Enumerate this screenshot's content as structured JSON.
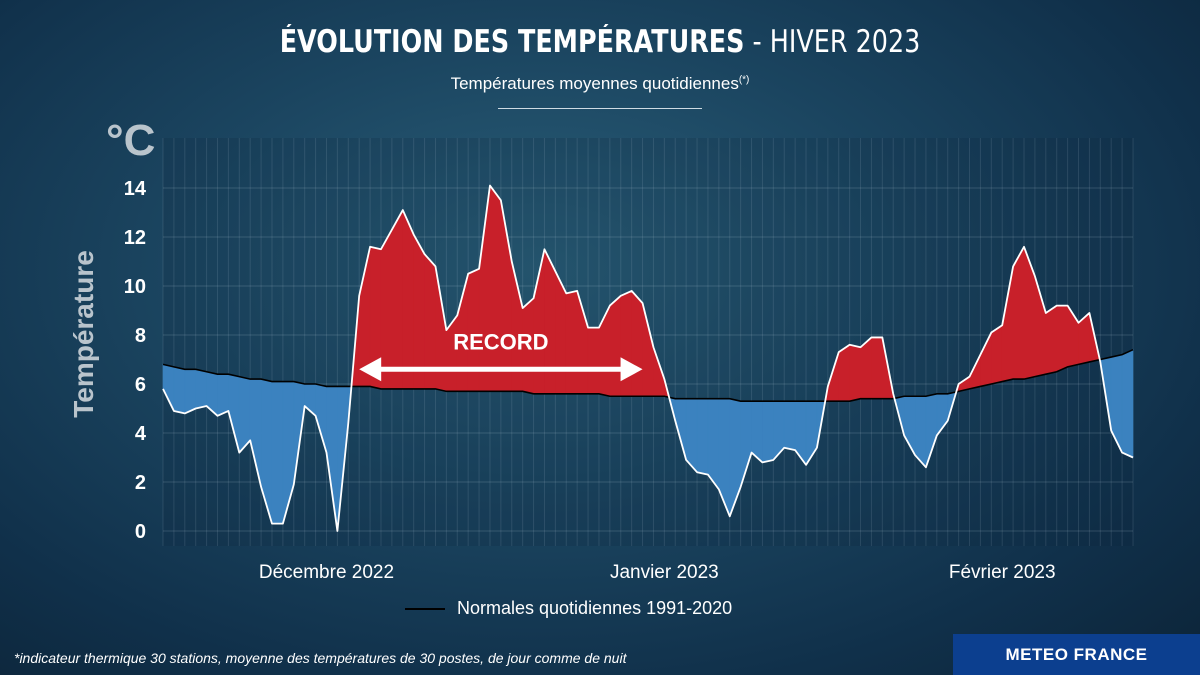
{
  "header": {
    "title_bold": "ÉVOLUTION DES TEMPÉRATURES",
    "title_light": " - HIVER 2023",
    "subtitle": "Températures moyennes quotidiennes",
    "subtitle_note": "(*)"
  },
  "footnote": "*indicateur thermique 30 stations, moyenne des températures de 30 postes, de jour comme de nuit",
  "brand": "METEO FRANCE",
  "colors": {
    "above": "#c8202a",
    "below": "#3b82bf",
    "normal_line": "#000000",
    "temp_line": "#ffffff"
  },
  "chart_data": {
    "type": "area",
    "unit": "°C",
    "ylabel": "Température",
    "ylim": [
      -0.5,
      16
    ],
    "yticks": [
      0,
      2,
      4,
      6,
      8,
      10,
      12,
      14
    ],
    "grid": true,
    "month_labels": [
      {
        "label": "Décembre 2022",
        "day_index": 15
      },
      {
        "label": "Janvier 2023",
        "day_index": 46
      },
      {
        "label": "Février 2023",
        "day_index": 77
      }
    ],
    "annotation": {
      "label": "RECORD",
      "from_day": 18,
      "to_day": 44,
      "y": 6.6
    },
    "legend": "Normales quotidiennes 1991-2020",
    "series": [
      {
        "values": [
          5.8,
          4.9,
          4.8,
          5.0,
          5.1,
          4.7,
          4.9,
          3.2,
          3.7,
          1.8,
          0.3,
          0.3,
          1.9,
          5.1,
          4.7,
          3.2,
          0.0,
          4.4,
          9.6,
          11.6,
          11.5,
          12.3,
          13.1,
          12.1,
          11.3,
          10.8,
          8.2,
          8.8,
          10.5,
          10.7,
          14.1,
          13.5,
          11.0,
          9.1,
          9.5,
          11.5,
          10.6,
          9.7,
          9.8,
          8.3,
          8.3,
          9.2,
          9.6,
          9.8,
          9.3,
          7.5,
          6.2,
          4.5,
          2.9,
          2.4,
          2.3,
          1.7,
          0.6,
          1.8,
          3.2,
          2.8,
          2.9,
          3.4,
          3.3,
          2.7,
          3.4,
          5.9,
          7.3,
          7.6,
          7.5,
          7.9,
          7.9,
          5.6,
          3.9,
          3.1,
          2.6,
          3.9,
          4.5,
          6.0,
          6.3,
          7.2,
          8.1,
          8.4,
          10.8,
          11.6,
          10.4,
          8.9,
          9.2,
          9.2,
          8.5,
          8.9,
          6.9,
          4.1,
          3.2,
          3.0
        ]
      },
      {
        "name": "Normales quotidiennes 1991-2020",
        "values": [
          6.8,
          6.7,
          6.6,
          6.6,
          6.5,
          6.4,
          6.4,
          6.3,
          6.2,
          6.2,
          6.1,
          6.1,
          6.1,
          6.0,
          6.0,
          5.9,
          5.9,
          5.9,
          5.9,
          5.9,
          5.8,
          5.8,
          5.8,
          5.8,
          5.8,
          5.8,
          5.7,
          5.7,
          5.7,
          5.7,
          5.7,
          5.7,
          5.7,
          5.7,
          5.6,
          5.6,
          5.6,
          5.6,
          5.6,
          5.6,
          5.6,
          5.5,
          5.5,
          5.5,
          5.5,
          5.5,
          5.5,
          5.4,
          5.4,
          5.4,
          5.4,
          5.4,
          5.4,
          5.3,
          5.3,
          5.3,
          5.3,
          5.3,
          5.3,
          5.3,
          5.3,
          5.3,
          5.3,
          5.3,
          5.4,
          5.4,
          5.4,
          5.4,
          5.5,
          5.5,
          5.5,
          5.6,
          5.6,
          5.7,
          5.8,
          5.9,
          6.0,
          6.1,
          6.2,
          6.2,
          6.3,
          6.4,
          6.5,
          6.7,
          6.8,
          6.9,
          7.0,
          7.1,
          7.2,
          7.4
        ]
      }
    ]
  }
}
